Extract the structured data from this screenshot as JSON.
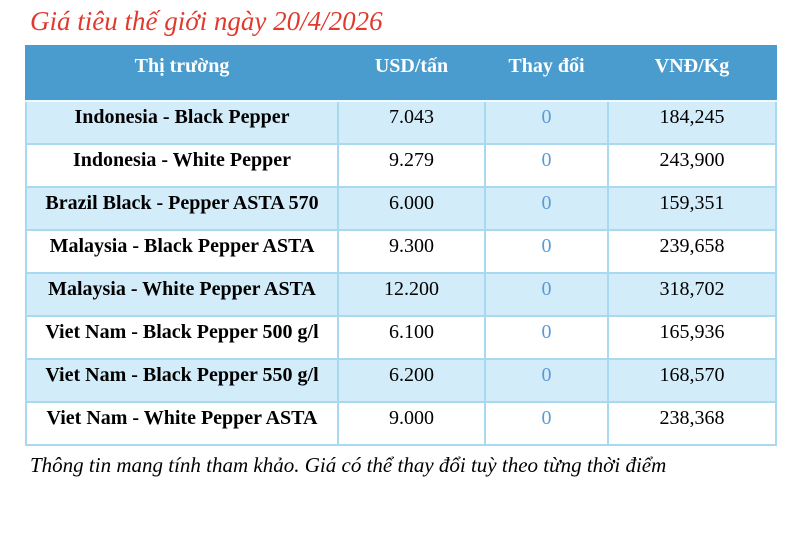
{
  "title": "Giá tiêu thế giới ngày 20/4/2026",
  "table": {
    "columns": [
      "Thị trường",
      "USD/tấn",
      "Thay đổi",
      "VNĐ/Kg"
    ],
    "rows": [
      {
        "market": "Indonesia - Black Pepper",
        "usd": "7.043",
        "change": "0",
        "vnd": "184,245"
      },
      {
        "market": "Indonesia - White Pepper",
        "usd": "9.279",
        "change": "0",
        "vnd": "243,900"
      },
      {
        "market": "Brazil Black - Pepper ASTA 570",
        "usd": "6.000",
        "change": "0",
        "vnd": "159,351"
      },
      {
        "market": "Malaysia - Black Pepper ASTA",
        "usd": "9.300",
        "change": "0",
        "vnd": "239,658"
      },
      {
        "market": "Malaysia - White Pepper ASTA",
        "usd": "12.200",
        "change": "0",
        "vnd": "318,702"
      },
      {
        "market": "Viet Nam - Black Pepper 500 g/l",
        "usd": "6.100",
        "change": "0",
        "vnd": "165,936"
      },
      {
        "market": "Viet Nam - Black Pepper 550 g/l",
        "usd": "6.200",
        "change": "0",
        "vnd": "168,570"
      },
      {
        "market": "Viet Nam - White Pepper ASTA",
        "usd": "9.000",
        "change": "0",
        "vnd": "238,368"
      }
    ]
  },
  "footer": "Thông tin mang tính tham khảo. Giá có thể thay đổi tuỳ theo từng thời điểm",
  "colors": {
    "title_red": "#e03a2e",
    "header_bg": "#4a9cce",
    "row_alt_bg": "#d3ecf9",
    "border": "#a9d9f0",
    "change_blue": "#5b9bd5"
  }
}
